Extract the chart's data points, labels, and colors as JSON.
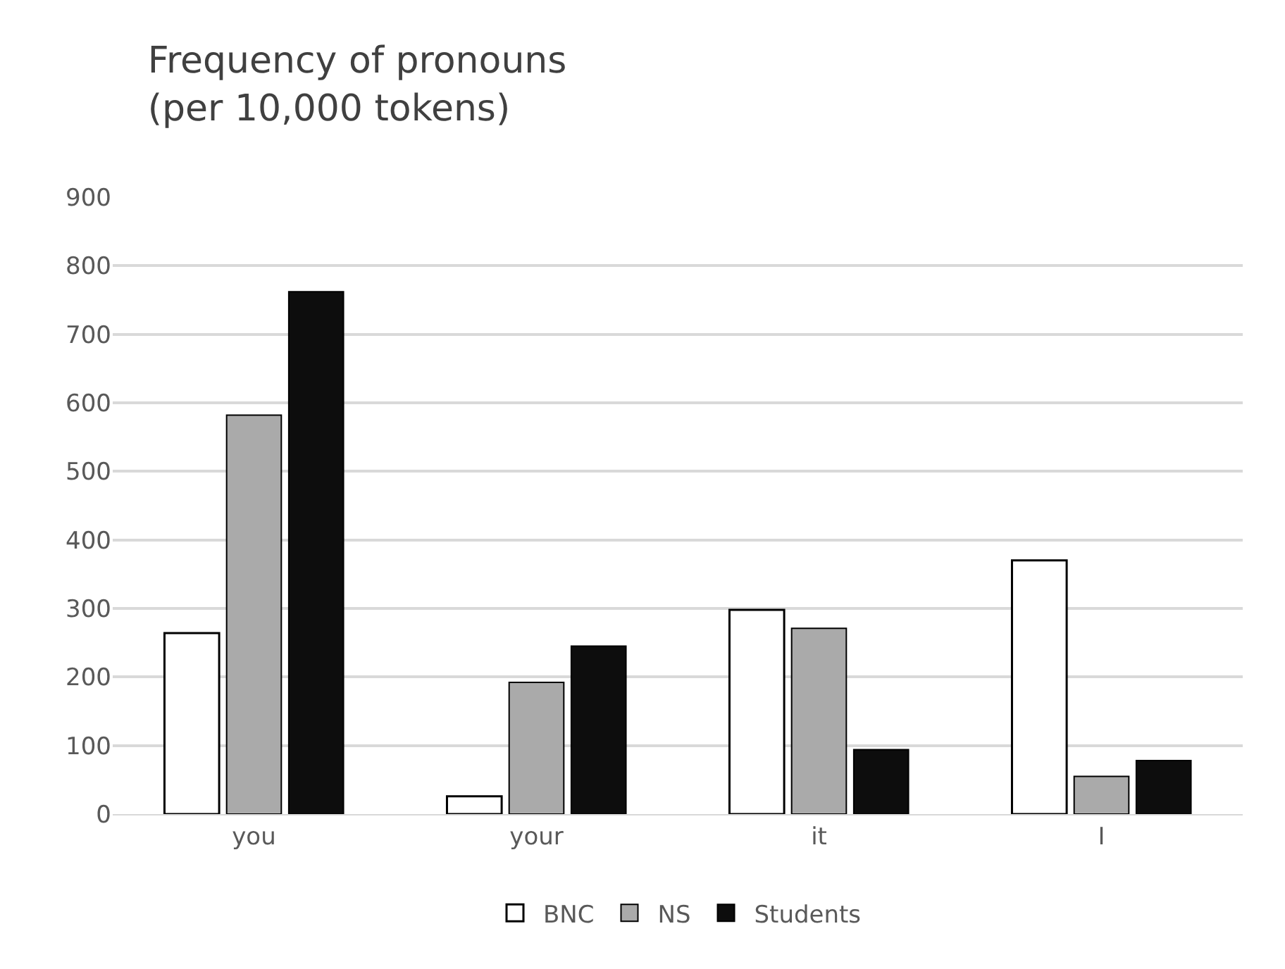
{
  "chart_data": {
    "type": "bar",
    "title": "Frequency of pronouns\n(per 10,000 tokens)",
    "categories": [
      "you",
      "your",
      "it",
      "I"
    ],
    "series": [
      {
        "name": "BNC",
        "color": "#ffffff",
        "values": [
          264,
          26,
          298,
          370
        ]
      },
      {
        "name": "NS",
        "color": "#aaaaaa",
        "values": [
          582,
          192,
          271,
          55
        ]
      },
      {
        "name": "Students",
        "color": "#0d0d0d",
        "values": [
          762,
          245,
          94,
          78
        ]
      }
    ],
    "ylim": [
      0,
      900
    ],
    "yticks": [
      0,
      100,
      200,
      300,
      400,
      500,
      600,
      700,
      800,
      900
    ],
    "grid": "y",
    "legend": "bottom"
  }
}
